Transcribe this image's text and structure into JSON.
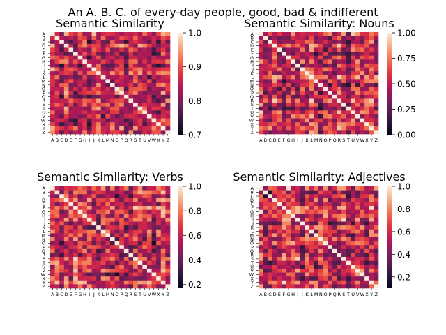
{
  "figure": {
    "suptitle": "An A. B. C. of every-day people, good, bad & indifferent"
  },
  "chart_data": [
    {
      "type": "heatmap",
      "title": "Semantic Similarity",
      "x_categories": [
        "A",
        "B",
        "C",
        "D",
        "E",
        "F",
        "G",
        "H",
        "I",
        "J",
        "K",
        "L",
        "M",
        "N",
        "O",
        "P",
        "Q",
        "R",
        "S",
        "T",
        "U",
        "V",
        "W",
        "X",
        "Y",
        "Z"
      ],
      "y_categories": [
        "A",
        "B",
        "C",
        "D",
        "E",
        "F",
        "G",
        "H",
        "I",
        "J",
        "K",
        "L",
        "M",
        "N",
        "O",
        "P",
        "Q",
        "R",
        "S",
        "T",
        "U",
        "V",
        "W",
        "X",
        "Y",
        "Z"
      ],
      "diagonal_value": 1.0,
      "value_range": [
        0.7,
        1.0
      ],
      "colorbar_ticks": [
        "1.0",
        "0.9",
        "0.8",
        "0.7"
      ],
      "colormap": "rocket",
      "grid": false
    },
    {
      "type": "heatmap",
      "title": "Semantic Similarity: Nouns",
      "x_categories": [
        "A",
        "B",
        "C",
        "D",
        "E",
        "F",
        "G",
        "H",
        "I",
        "J",
        "K",
        "L",
        "M",
        "N",
        "O",
        "P",
        "Q",
        "R",
        "S",
        "T",
        "U",
        "V",
        "W",
        "X",
        "Y",
        "Z"
      ],
      "y_categories": [
        "A",
        "B",
        "C",
        "D",
        "E",
        "F",
        "G",
        "H",
        "I",
        "J",
        "K",
        "L",
        "M",
        "N",
        "O",
        "P",
        "Q",
        "R",
        "S",
        "T",
        "U",
        "V",
        "W",
        "X",
        "Y",
        "Z"
      ],
      "diagonal_value": 1.0,
      "value_range": [
        0.0,
        1.0
      ],
      "colorbar_ticks": [
        "1.00",
        "0.75",
        "0.50",
        "0.25",
        "0.00"
      ],
      "colormap": "rocket",
      "grid": false
    },
    {
      "type": "heatmap",
      "title": "Semantic Similarity: Verbs",
      "x_categories": [
        "A",
        "B",
        "C",
        "D",
        "E",
        "F",
        "G",
        "H",
        "I",
        "J",
        "K",
        "L",
        "M",
        "N",
        "O",
        "P",
        "Q",
        "R",
        "S",
        "T",
        "U",
        "V",
        "W",
        "X",
        "Y",
        "Z"
      ],
      "y_categories": [
        "A",
        "B",
        "C",
        "D",
        "E",
        "F",
        "G",
        "H",
        "I",
        "J",
        "K",
        "L",
        "M",
        "N",
        "O",
        "P",
        "Q",
        "R",
        "S",
        "T",
        "U",
        "V",
        "W",
        "X",
        "Y",
        "Z"
      ],
      "diagonal_value": 1.0,
      "value_range": [
        0.17,
        1.0
      ],
      "colorbar_ticks": [
        "1.0",
        "0.8",
        "0.6",
        "0.4",
        "0.2"
      ],
      "colormap": "rocket",
      "grid": false
    },
    {
      "type": "heatmap",
      "title": "Semantic Similarity: Adjectives",
      "x_categories": [
        "A",
        "B",
        "C",
        "D",
        "E",
        "F",
        "G",
        "H",
        "I",
        "J",
        "K",
        "L",
        "M",
        "N",
        "O",
        "P",
        "Q",
        "R",
        "S",
        "T",
        "U",
        "V",
        "W",
        "X",
        "Y",
        "Z"
      ],
      "y_categories": [
        "A",
        "B",
        "C",
        "D",
        "E",
        "F",
        "G",
        "H",
        "I",
        "J",
        "K",
        "L",
        "M",
        "N",
        "O",
        "P",
        "Q",
        "R",
        "S",
        "T",
        "U",
        "V",
        "W",
        "X",
        "Y",
        "Z"
      ],
      "diagonal_value": 1.0,
      "value_range": [
        0.1,
        1.0
      ],
      "colorbar_ticks": [
        "1.0",
        "0.8",
        "0.6",
        "0.4",
        "0.2"
      ],
      "colormap": "rocket",
      "grid": false
    }
  ]
}
